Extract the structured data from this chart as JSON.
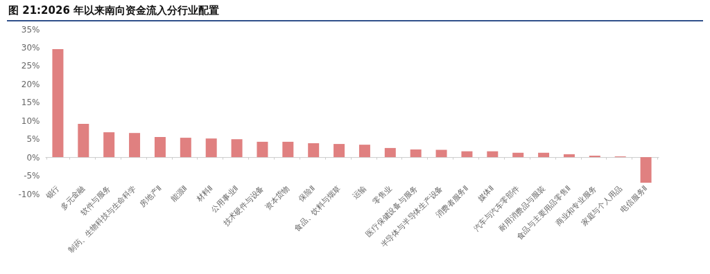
{
  "chart_data": {
    "type": "bar",
    "title": "图 21:2026 年以来南向资金流入分行业配置",
    "categories": [
      "银行",
      "多元金融",
      "软件与服务",
      "制药、生物科技与生命科学",
      "房地产Ⅱ",
      "能源Ⅱ",
      "材料Ⅱ",
      "公用事业Ⅱ",
      "技术硬件与设备",
      "资本货物",
      "保险Ⅱ",
      "食品、饮料与烟草",
      "运输",
      "零售业",
      "医疗保健设备与服务",
      "半导体与半导体生产设备",
      "消费者服务Ⅱ",
      "媒体Ⅱ",
      "汽车与汽车零部件",
      "耐用消费品与服装",
      "食品与主要用品零售Ⅱ",
      "商业和专业服务",
      "家庭与个人用品",
      "电信服务Ⅱ"
    ],
    "values": [
      29.5,
      9.1,
      6.8,
      6.6,
      5.5,
      5.3,
      5.1,
      4.9,
      4.2,
      4.2,
      3.8,
      3.6,
      3.4,
      2.5,
      2.1,
      2.0,
      1.6,
      1.6,
      1.2,
      1.2,
      0.8,
      0.4,
      0.2,
      -7.0
    ],
    "color": "#e08080",
    "ylim": [
      -10,
      35
    ],
    "yticks": [
      {
        "value": -10,
        "label": "-10%"
      },
      {
        "value": -5,
        "label": "-5%"
      },
      {
        "value": 0,
        "label": "0%"
      },
      {
        "value": 5,
        "label": "5%"
      },
      {
        "value": 10,
        "label": "10%"
      },
      {
        "value": 15,
        "label": "15%"
      },
      {
        "value": 20,
        "label": "20%"
      },
      {
        "value": 25,
        "label": "25%"
      },
      {
        "value": 30,
        "label": "30%"
      },
      {
        "value": 35,
        "label": "35%"
      }
    ],
    "legend": false
  }
}
